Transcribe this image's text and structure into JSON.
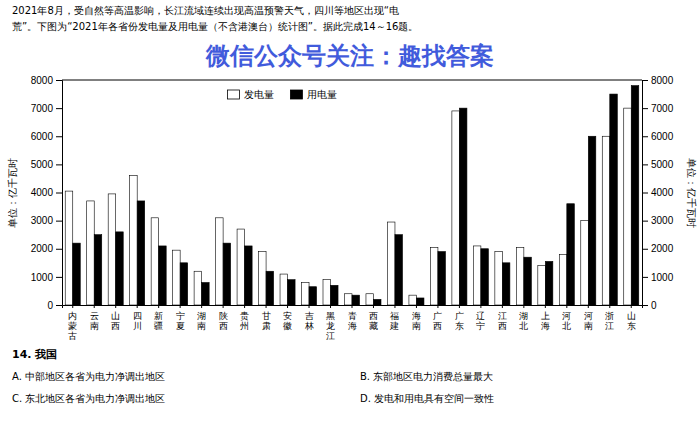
{
  "chart_data": {
    "type": "bar",
    "categories": [
      "内蒙古",
      "云南",
      "山西",
      "四川",
      "新疆",
      "宁夏",
      "湖南",
      "陕西",
      "贵州",
      "甘肃",
      "安徽",
      "吉林",
      "黑龙江",
      "青海",
      "西藏",
      "福建",
      "海南",
      "广西",
      "广东",
      "辽宁",
      "江西",
      "湖北",
      "上海",
      "河北",
      "河南",
      "浙江",
      "山东"
    ],
    "series": [
      {
        "name": "发电量",
        "color": "white",
        "values": [
          4050,
          3700,
          3950,
          4600,
          3100,
          1950,
          1200,
          3100,
          2700,
          1900,
          1100,
          800,
          900,
          400,
          400,
          2950,
          350,
          2050,
          6900,
          2100,
          1900,
          2050,
          1400,
          1800,
          3000,
          6000,
          7000
        ]
      },
      {
        "name": "用电量",
        "color": "black",
        "values": [
          2200,
          2500,
          2600,
          3700,
          2100,
          1500,
          800,
          2200,
          2100,
          1200,
          900,
          650,
          700,
          350,
          200,
          2500,
          250,
          1900,
          7000,
          2000,
          1500,
          1700,
          1550,
          3600,
          6000,
          7500,
          7800
        ]
      }
    ],
    "ylabel": "单位：亿千瓦时",
    "y2label": "单位：亿千瓦时",
    "ylim": [
      0,
      8000
    ],
    "yticks": [
      0,
      1000,
      2000,
      3000,
      4000,
      5000,
      6000,
      7000,
      8000
    ],
    "y2lim": [
      0,
      8000
    ],
    "y2ticks": [
      0,
      1000,
      2000,
      3000,
      4000,
      5000,
      6000,
      7000,
      8000
    ],
    "grid": false,
    "legend": "top",
    "annotations": [
      "2021年8月，受自然等高温影响，长江流域连续出现高温预警天气，四川等地区出现“电",
      "荒”。下图为“2021年各省份发电量及用电量（不含港澳台）统计图”。据此完成14～16题。",
      "微信公众号关注：趣找答案",
      "14. 我国",
      "A. 中部地区各省为电力净调出地区",
      "B. 东部地区电力消费总量最大",
      "C. 东北地区各省为电力净调出地区",
      "D. 发电和用电具有空间一致性"
    ]
  }
}
